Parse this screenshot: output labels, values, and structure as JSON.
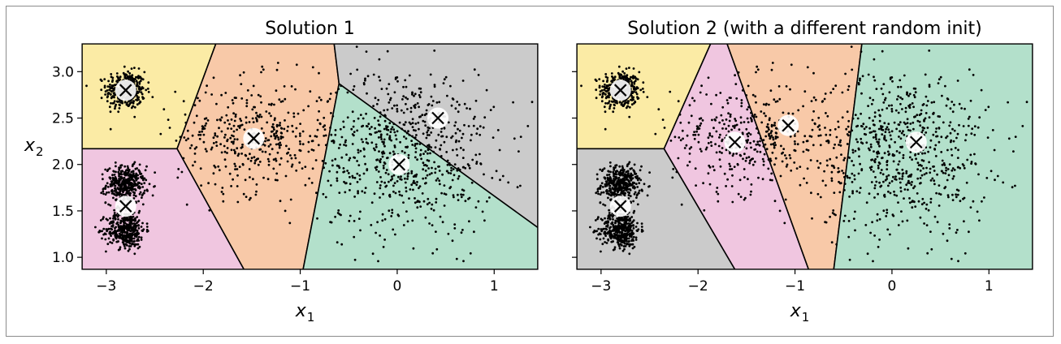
{
  "chart_data": [
    {
      "type": "scatter",
      "subtype": "kmeans-voronoi",
      "title": "Solution 1",
      "xlabel": "x1",
      "ylabel": "x2",
      "xlim": [
        -3.25,
        1.45
      ],
      "ylim": [
        0.87,
        3.3
      ],
      "xticks": [
        -3,
        -2,
        -1,
        0,
        1
      ],
      "yticks": [
        1.0,
        1.5,
        2.0,
        2.5,
        3.0
      ],
      "xticklabels": [
        "−3",
        "−2",
        "−1",
        "0",
        "1"
      ],
      "yticklabels": [
        "1.0",
        "1.5",
        "2.0",
        "2.5",
        "3.0"
      ],
      "grid": false,
      "regions": [
        {
          "color": "#fbeba5",
          "polygon": [
            [
              -3.25,
              2.17
            ],
            [
              -2.27,
              2.17
            ],
            [
              -1.87,
              3.3
            ],
            [
              -3.25,
              3.3
            ]
          ]
        },
        {
          "color": "#f0c6e0",
          "polygon": [
            [
              -3.25,
              0.87
            ],
            [
              -1.58,
              0.87
            ],
            [
              -2.27,
              2.17
            ],
            [
              -3.25,
              2.17
            ]
          ]
        },
        {
          "color": "#f8c9a8",
          "polygon": [
            [
              -2.27,
              2.17
            ],
            [
              -1.87,
              3.3
            ],
            [
              -0.65,
              3.3
            ],
            [
              -0.6,
              2.87
            ],
            [
              -0.97,
              0.87
            ],
            [
              -1.58,
              0.87
            ]
          ]
        },
        {
          "color": "#cbcbcb",
          "polygon": [
            [
              -0.65,
              3.3
            ],
            [
              1.45,
              3.3
            ],
            [
              1.45,
              1.32
            ],
            [
              -0.6,
              2.87
            ]
          ]
        },
        {
          "color": "#b3e0cb",
          "polygon": [
            [
              -0.6,
              2.87
            ],
            [
              1.45,
              1.32
            ],
            [
              1.45,
              0.87
            ],
            [
              -0.97,
              0.87
            ]
          ]
        }
      ],
      "centroids": [
        [
          -2.8,
          2.8
        ],
        [
          -2.8,
          1.55
        ],
        [
          -1.48,
          2.28
        ],
        [
          0.42,
          2.5
        ],
        [
          0.02,
          2.0
        ]
      ],
      "clusters": [
        {
          "cx": -2.8,
          "cy": 2.8,
          "sx": 0.1,
          "sy": 0.1,
          "n": 400
        },
        {
          "cx": -2.8,
          "cy": 1.78,
          "sx": 0.1,
          "sy": 0.1,
          "n": 400
        },
        {
          "cx": -2.8,
          "cy": 1.3,
          "sx": 0.1,
          "sy": 0.1,
          "n": 400
        },
        {
          "cx": -1.47,
          "cy": 2.3,
          "sx": 0.4,
          "sy": 0.3,
          "n": 400
        },
        {
          "cx": 0.1,
          "cy": 2.15,
          "sx": 0.45,
          "sy": 0.45,
          "n": 700
        }
      ]
    },
    {
      "type": "scatter",
      "subtype": "kmeans-voronoi",
      "title": "Solution 2 (with a different random init)",
      "xlabel": "x1",
      "ylabel": "",
      "xlim": [
        -3.25,
        1.45
      ],
      "ylim": [
        0.87,
        3.3
      ],
      "xticks": [
        -3,
        -2,
        -1,
        0,
        1
      ],
      "yticks": [],
      "xticklabels": [
        "−3",
        "−2",
        "−1",
        "0",
        "1"
      ],
      "yticklabels": [],
      "grid": false,
      "regions": [
        {
          "color": "#fbeba5",
          "polygon": [
            [
              -3.25,
              2.17
            ],
            [
              -2.35,
              2.17
            ],
            [
              -1.87,
              3.3
            ],
            [
              -3.25,
              3.3
            ]
          ]
        },
        {
          "color": "#cbcbcb",
          "polygon": [
            [
              -3.25,
              0.87
            ],
            [
              -1.62,
              0.87
            ],
            [
              -2.35,
              2.17
            ],
            [
              -3.25,
              2.17
            ]
          ]
        },
        {
          "color": "#f0c6e0",
          "polygon": [
            [
              -2.35,
              2.17
            ],
            [
              -1.87,
              3.3
            ],
            [
              -1.7,
              3.3
            ],
            [
              -0.86,
              0.87
            ],
            [
              -1.62,
              0.87
            ]
          ]
        },
        {
          "color": "#f8c9a8",
          "polygon": [
            [
              -1.7,
              3.3
            ],
            [
              -0.31,
              3.3
            ],
            [
              -0.6,
              0.87
            ],
            [
              -0.86,
              0.87
            ]
          ]
        },
        {
          "color": "#b3e0cb",
          "polygon": [
            [
              -0.31,
              3.3
            ],
            [
              1.45,
              3.3
            ],
            [
              1.45,
              0.87
            ],
            [
              -0.6,
              0.87
            ]
          ]
        }
      ],
      "centroids": [
        [
          -2.8,
          2.8
        ],
        [
          -2.8,
          1.55
        ],
        [
          -1.62,
          2.24
        ],
        [
          -1.07,
          2.42
        ],
        [
          0.25,
          2.24
        ]
      ],
      "clusters": [
        {
          "cx": -2.8,
          "cy": 2.8,
          "sx": 0.1,
          "sy": 0.1,
          "n": 400
        },
        {
          "cx": -2.8,
          "cy": 1.78,
          "sx": 0.1,
          "sy": 0.1,
          "n": 400
        },
        {
          "cx": -2.8,
          "cy": 1.3,
          "sx": 0.1,
          "sy": 0.1,
          "n": 400
        },
        {
          "cx": -1.47,
          "cy": 2.3,
          "sx": 0.4,
          "sy": 0.3,
          "n": 400
        },
        {
          "cx": 0.1,
          "cy": 2.15,
          "sx": 0.45,
          "sy": 0.45,
          "n": 700
        }
      ]
    }
  ]
}
